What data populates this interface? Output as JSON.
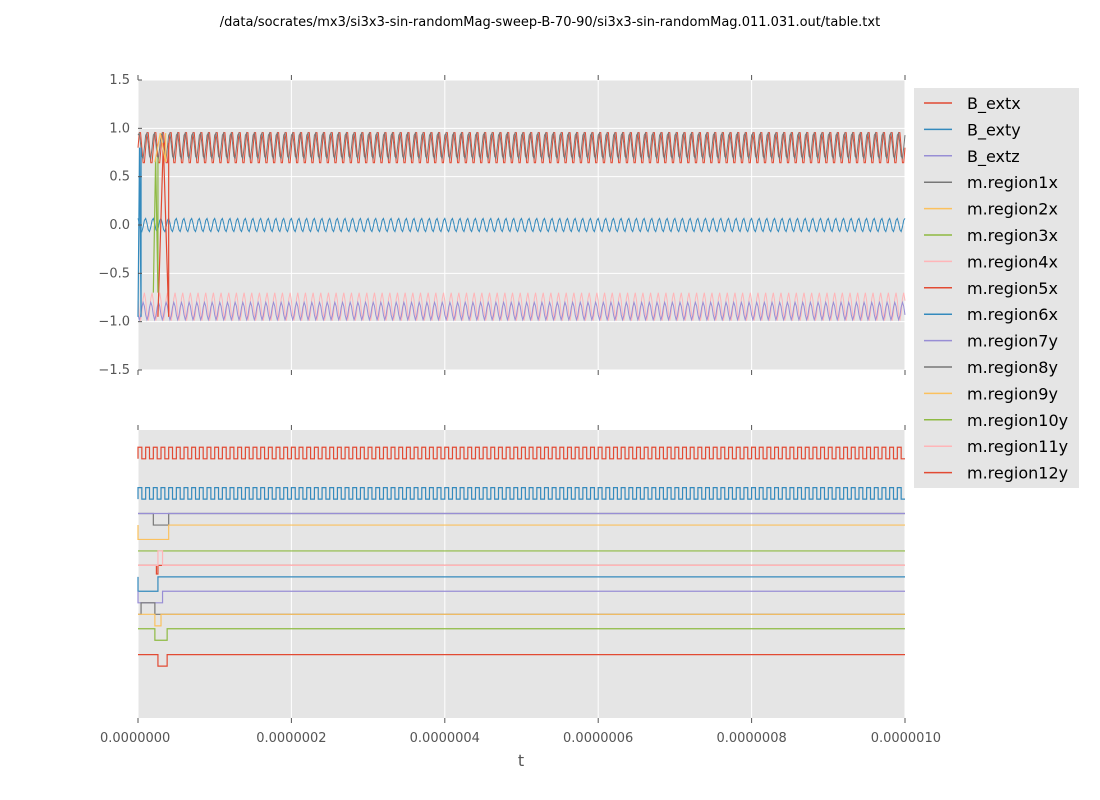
{
  "figure": {
    "title": "/data/socrates/mx3/si3x3-sin-randomMag-sweep-B-70-90/si3x3-sin-randomMag.011.031.out/table.txt",
    "xlabel": "t"
  },
  "colors": {
    "axes_bg": "#e5e5e5",
    "grid": "#ffffff",
    "legend_bg": "#e5e5e5",
    "tick_text": "#555555"
  },
  "chart_data": {
    "type": "line",
    "xlim": [
      0,
      1e-06
    ],
    "x_ticks": [
      "0.0000000",
      "0.0000002",
      "0.0000004",
      "0.0000006",
      "0.0000008",
      "0.0000010"
    ],
    "legend_position": "right, outside upper subplot",
    "legend": [
      {
        "name": "B_extx",
        "color": "#e24a33"
      },
      {
        "name": "B_exty",
        "color": "#348abd"
      },
      {
        "name": "B_extz",
        "color": "#988ed5"
      },
      {
        "name": "m.region1x",
        "color": "#777777"
      },
      {
        "name": "m.region2x",
        "color": "#fbc15e"
      },
      {
        "name": "m.region3x",
        "color": "#8eba42"
      },
      {
        "name": "m.region4x",
        "color": "#ffb5b8"
      },
      {
        "name": "m.region5x",
        "color": "#e24a33"
      },
      {
        "name": "m.region6x",
        "color": "#348abd"
      },
      {
        "name": "m.region7y",
        "color": "#988ed5"
      },
      {
        "name": "m.region8y",
        "color": "#777777"
      },
      {
        "name": "m.region9y",
        "color": "#fbc15e"
      },
      {
        "name": "m.region10y",
        "color": "#8eba42"
      },
      {
        "name": "m.region11y",
        "color": "#ffb5b8"
      },
      {
        "name": "m.region12y",
        "color": "#e24a33"
      }
    ],
    "top_panel": {
      "ylim": [
        -1.5,
        1.5
      ],
      "y_ticks": [
        "1.5",
        "1.0",
        "0.5",
        "0.0",
        "−0.5",
        "−1.0",
        "−1.5"
      ],
      "grid": true,
      "bands": [
        {
          "color": "#e24a33",
          "low": 0.62,
          "high": 0.98,
          "cycles": 100
        },
        {
          "color": "#777777",
          "low": 0.68,
          "high": 0.96,
          "cycles": 100
        },
        {
          "color": "#348abd",
          "low": -0.07,
          "high": 0.07,
          "cycles": 100
        },
        {
          "color": "#ffb5b8",
          "low": -0.99,
          "high": -0.7,
          "cycles": 100
        },
        {
          "color": "#988ed5",
          "low": -0.98,
          "high": -0.8,
          "cycles": 100
        }
      ]
    },
    "bottom_panel": {
      "ylim": [
        0,
        1
      ],
      "y_ticks": [],
      "grid": true,
      "traces": [
        {
          "color": "#e24a33",
          "y": 0.92,
          "style": "square",
          "amp": 0.04,
          "cycles": 100
        },
        {
          "color": "#348abd",
          "y": 0.78,
          "style": "square",
          "amp": 0.04,
          "cycles": 100
        },
        {
          "color": "#777777",
          "y": 0.71,
          "style": "step",
          "pre": 0.67,
          "t0": 2e-08,
          "t1": 4e-08
        },
        {
          "color": "#988ed5",
          "y": 0.71,
          "style": "flat"
        },
        {
          "color": "#fbc15e",
          "y": 0.67,
          "style": "step",
          "pre": 0.62,
          "t1": 4e-08
        },
        {
          "color": "#8eba42",
          "y": 0.58,
          "style": "flat"
        },
        {
          "color": "#e24a33",
          "y": 0.53,
          "style": "step",
          "pre": 0.5,
          "t0": 2.4e-08,
          "t1": 2.6e-08
        },
        {
          "color": "#ffb5b8",
          "y": 0.53,
          "style": "step",
          "pre": 0.58,
          "t0": 2.6e-08,
          "t1": 3.2e-08
        },
        {
          "color": "#348abd",
          "y": 0.49,
          "style": "step",
          "pre": 0.44,
          "t1": 2.6e-08
        },
        {
          "color": "#988ed5",
          "y": 0.44,
          "style": "step",
          "pre": 0.4,
          "t1": 3.2e-08
        },
        {
          "color": "#777777",
          "y": 0.36,
          "style": "step",
          "pre": 0.4,
          "t0": 4e-09,
          "t1": 2.2e-08
        },
        {
          "color": "#fbc15e",
          "y": 0.36,
          "style": "step",
          "pre": 0.32,
          "t0": 2.2e-08,
          "t1": 3e-08
        },
        {
          "color": "#8eba42",
          "y": 0.31,
          "style": "step",
          "pre": 0.27,
          "t0": 2.2e-08,
          "t1": 3.8e-08
        },
        {
          "color": "#e24a33",
          "y": 0.22,
          "style": "step",
          "pre": 0.18,
          "t0": 2.6e-08,
          "t1": 3.8e-08
        }
      ]
    }
  }
}
